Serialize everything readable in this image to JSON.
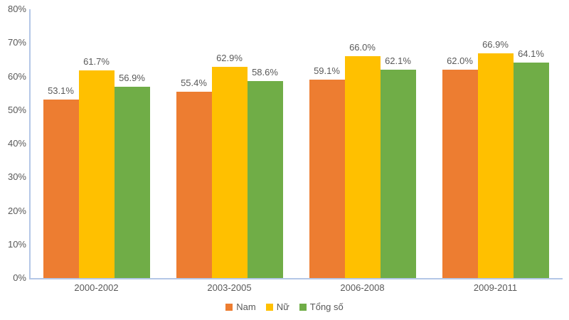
{
  "chart_data": {
    "type": "bar",
    "title": "",
    "categories": [
      "2000-2002",
      "2003-2005",
      "2006-2008",
      "2009-2011"
    ],
    "series": [
      {
        "name": "Nam",
        "color": "#ED7D31",
        "values": [
          53.1,
          55.4,
          59.1,
          62.0
        ],
        "labels": [
          "53.1%",
          "55.4%",
          "59.1%",
          "62.0%"
        ]
      },
      {
        "name": "Nữ",
        "color": "#FFC000",
        "values": [
          61.7,
          62.9,
          66.0,
          66.9
        ],
        "labels": [
          "61.7%",
          "62.9%",
          "66.0%",
          "66.9%"
        ]
      },
      {
        "name": "Tổng số",
        "color": "#70AD47",
        "values": [
          56.9,
          58.6,
          62.1,
          64.1
        ],
        "labels": [
          "56.9%",
          "58.6%",
          "62.1%",
          "64.1%"
        ]
      }
    ],
    "y_axis": {
      "min": 0,
      "max": 80,
      "step": 10,
      "tick_labels": [
        "0%",
        "10%",
        "20%",
        "30%",
        "40%",
        "50%",
        "60%",
        "70%",
        "80%"
      ]
    },
    "legend": {
      "position": "bottom",
      "entries": [
        "Nam",
        "Nữ",
        "Tổng số"
      ]
    },
    "grid": false,
    "colors": {
      "text": "#595959",
      "axis_line": "#B4C7E7",
      "background": "#FFFFFF"
    }
  }
}
